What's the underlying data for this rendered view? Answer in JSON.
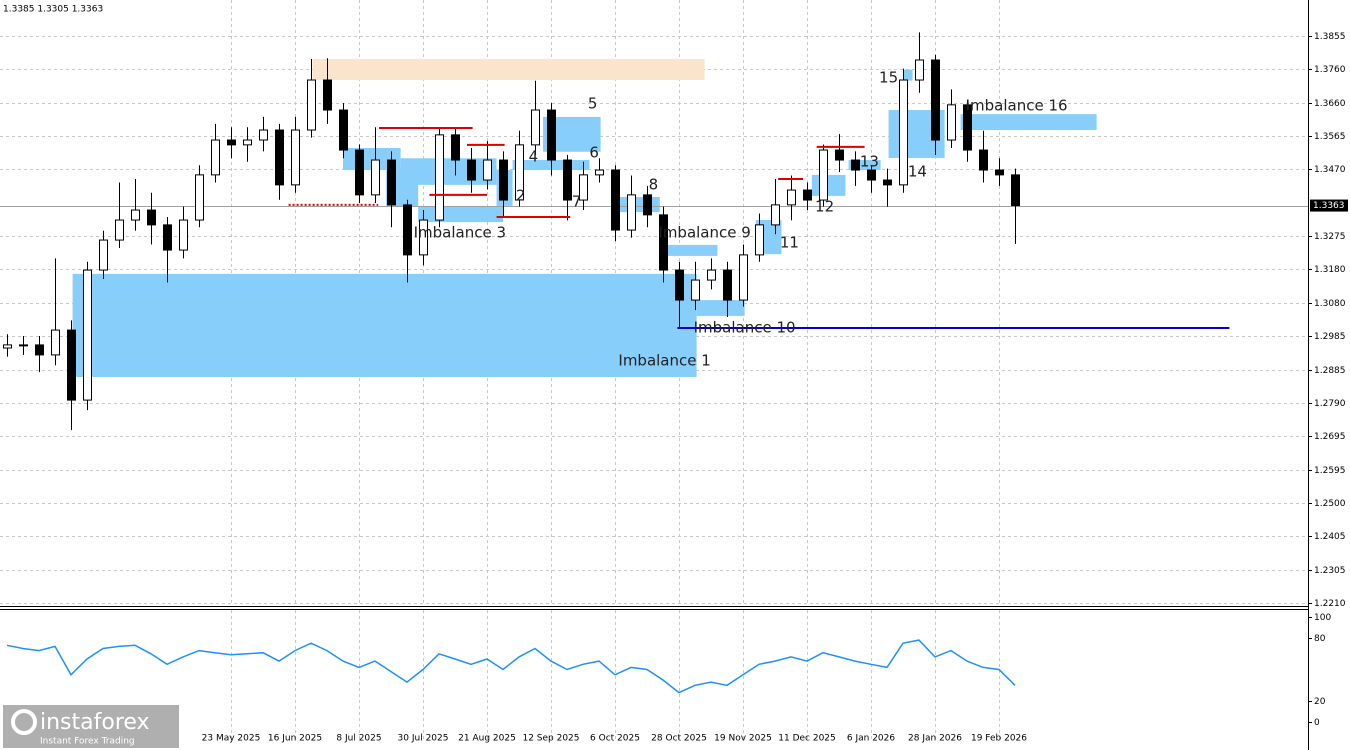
{
  "header": "1.3385 1.3305 1.3363",
  "watermark": {
    "brand": "instaforex",
    "tagline": "Instant Forex Trading"
  },
  "chart_data": [
    {
      "type": "candlestick",
      "categories": [
        null,
        null,
        null,
        null,
        null,
        null,
        null,
        null,
        null,
        null,
        null,
        null,
        null,
        null,
        "23 May 2025",
        null,
        null,
        null,
        "16 Jun 2025",
        null,
        null,
        null,
        "8 Jul 2025",
        null,
        null,
        null,
        "30 Jul 2025",
        null,
        null,
        null,
        "21 Aug 2025",
        null,
        null,
        null,
        "12 Sep 2025",
        null,
        null,
        null,
        "6 Oct 2025",
        null,
        null,
        null,
        "28 Oct 2025",
        null,
        null,
        null,
        "19 Nov 2025",
        null,
        null,
        null,
        "11 Dec 2025",
        null,
        null,
        null,
        "6 Jan 2026",
        null,
        null,
        null,
        "28 Jan 2026",
        null,
        null,
        null,
        "19 Feb 2026",
        null
      ],
      "open": [
        1.295,
        1.2959,
        1.2959,
        1.293,
        1.3002,
        1.2799,
        1.3176,
        1.3263,
        1.3321,
        1.335,
        1.3307,
        1.3234,
        1.3321,
        1.3452,
        1.3553,
        1.3539,
        1.3553,
        1.3582,
        1.3423,
        1.3582,
        1.3727,
        1.364,
        1.3524,
        1.3394,
        1.3495,
        1.3365,
        1.322,
        1.3321,
        1.3568,
        1.3495,
        1.3437,
        1.3495,
        1.3379,
        1.3539,
        1.364,
        1.3495,
        1.3379,
        1.3452,
        1.3466,
        1.3292,
        1.3394,
        1.3336,
        1.3176,
        1.3089,
        1.3147,
        1.3176,
        1.3089,
        1.322,
        1.3307,
        1.3365,
        1.3408,
        1.3379,
        1.3524,
        1.3495,
        1.3466,
        1.3437,
        1.3423,
        1.3727,
        1.3785,
        1.3553,
        1.3655,
        1.3524,
        1.3466,
        1.3452
      ],
      "high": [
        1.299,
        1.2985,
        1.2985,
        1.321,
        1.303,
        1.32,
        1.329,
        1.343,
        1.344,
        1.34,
        1.333,
        1.336,
        1.348,
        1.36,
        1.359,
        1.359,
        1.362,
        1.36,
        1.362,
        1.3788,
        1.379,
        1.366,
        1.354,
        1.359,
        1.352,
        1.338,
        1.335,
        1.359,
        1.359,
        1.353,
        1.355,
        1.352,
        1.358,
        1.3725,
        1.366,
        1.351,
        1.349,
        1.35,
        1.348,
        1.345,
        1.342,
        1.336,
        1.32,
        1.32,
        1.321,
        1.32,
        1.325,
        1.334,
        1.344,
        1.345,
        1.343,
        1.354,
        1.357,
        1.352,
        1.348,
        1.347,
        1.376,
        1.3865,
        1.38,
        1.37,
        1.367,
        1.358,
        1.35,
        1.347
      ],
      "low": [
        1.2925,
        1.293,
        1.288,
        1.29,
        1.2712,
        1.277,
        1.315,
        1.324,
        1.329,
        1.325,
        1.314,
        1.321,
        1.33,
        1.343,
        1.35,
        1.349,
        1.352,
        1.338,
        1.34,
        1.356,
        1.36,
        1.35,
        1.337,
        1.337,
        1.33,
        1.314,
        1.319,
        1.33,
        1.345,
        1.34,
        1.341,
        1.333,
        1.336,
        1.351,
        1.345,
        1.332,
        1.335,
        1.343,
        1.326,
        1.327,
        1.33,
        1.314,
        1.3008,
        1.306,
        1.312,
        1.304,
        1.307,
        1.32,
        1.328,
        1.332,
        1.335,
        1.336,
        1.346,
        1.342,
        1.34,
        1.336,
        1.34,
        1.369,
        1.351,
        1.353,
        1.349,
        1.343,
        1.342,
        1.3252
      ],
      "close": [
        1.2959,
        1.2959,
        1.293,
        1.3002,
        1.2799,
        1.3176,
        1.3263,
        1.3321,
        1.335,
        1.3307,
        1.3234,
        1.3321,
        1.3452,
        1.3553,
        1.3539,
        1.3553,
        1.3582,
        1.3423,
        1.3582,
        1.3727,
        1.364,
        1.3524,
        1.3394,
        1.3495,
        1.3365,
        1.322,
        1.3321,
        1.3568,
        1.3495,
        1.3437,
        1.3495,
        1.3379,
        1.3539,
        1.364,
        1.3495,
        1.3379,
        1.3452,
        1.3466,
        1.3292,
        1.3394,
        1.3336,
        1.3176,
        1.3089,
        1.3147,
        1.3176,
        1.3089,
        1.322,
        1.3307,
        1.3365,
        1.3408,
        1.3379,
        1.3524,
        1.3495,
        1.3466,
        1.3437,
        1.3423,
        1.3727,
        1.3785,
        1.3553,
        1.3655,
        1.3524,
        1.3466,
        1.3452,
        1.3363
      ],
      "ylim": [
        1.2202,
        1.3959
      ],
      "yticks": [
        1.3855,
        {
          "value": 1.376,
          "label": "1.3760"
        },
        {
          "value": 1.366,
          "label": "1.3660"
        },
        1.3565,
        {
          "value": 1.347,
          "label": "1.3470"
        },
        1.3275,
        {
          "value": 1.318,
          "label": "1.3180"
        },
        {
          "value": 1.308,
          "label": "1.3080"
        },
        1.2985,
        1.2885,
        {
          "value": 1.279,
          "label": "1.2790"
        },
        1.2695,
        1.2595,
        {
          "value": 1.25,
          "label": "1.2500"
        },
        1.2405,
        1.2305,
        {
          "value": 1.221,
          "label": "1.2210"
        }
      ],
      "grid": true,
      "current_price": {
        "value": 1.3363,
        "label": "1.3363"
      },
      "zones": [
        {
          "from": 4.1,
          "to": 43.1,
          "low": 1.2866,
          "high": 1.3165,
          "color": "#87cefa"
        },
        {
          "from": 19.1,
          "to": 43.6,
          "low": 1.3727,
          "high": 1.3788,
          "color": "#fae5cc"
        },
        {
          "from": 33.5,
          "to": 37.1,
          "low": 1.3519,
          "high": 1.362,
          "color": "#87cefa"
        },
        {
          "from": 21,
          "to": 24.6,
          "low": 1.3466,
          "high": 1.353,
          "color": "#87cefa"
        },
        {
          "from": 23.7,
          "to": 25.7,
          "low": 1.336,
          "high": 1.347,
          "color": "#87cefa"
        },
        {
          "from": 24.6,
          "to": 30.6,
          "low": 1.3423,
          "high": 1.35,
          "color": "#87cefa"
        },
        {
          "from": 25.7,
          "to": 31,
          "low": 1.3315,
          "high": 1.3362,
          "color": "#87cefa"
        },
        {
          "from": 30.6,
          "to": 31.6,
          "low": 1.3362,
          "high": 1.3466,
          "color": "#87cefa"
        },
        {
          "from": 31.6,
          "to": 36.4,
          "low": 1.3466,
          "high": 1.3495,
          "color": "#87cefa"
        },
        {
          "from": 38.2,
          "to": 40.8,
          "low": 1.3344,
          "high": 1.3388,
          "color": "#87cefa"
        },
        {
          "from": 40.9,
          "to": 44.4,
          "low": 1.3217,
          "high": 1.3249,
          "color": "#87cefa"
        },
        {
          "from": 43.1,
          "to": 46.1,
          "low": 1.3043,
          "high": 1.3089,
          "color": "#87cefa"
        },
        {
          "from": 46.8,
          "to": 48.4,
          "low": 1.3222,
          "high": 1.3321,
          "color": "#87cefa"
        },
        {
          "from": 50.3,
          "to": 52.4,
          "low": 1.3391,
          "high": 1.3452,
          "color": "#87cefa"
        },
        {
          "from": 52.6,
          "to": 54.6,
          "low": 1.3466,
          "high": 1.3495,
          "color": "#87cefa"
        },
        {
          "from": 55.1,
          "to": 58.6,
          "low": 1.3501,
          "high": 1.364,
          "color": "#87cefa"
        },
        {
          "from": 56,
          "to": 56.6,
          "low": 1.3725,
          "high": 1.3757,
          "color": "#87cefa"
        },
        {
          "from": 59.6,
          "to": 68.1,
          "low": 1.3582,
          "high": 1.3628,
          "color": "#87cefa"
        }
      ],
      "levels": [
        {
          "from": 23.25,
          "to": 29.1,
          "price": 1.3588,
          "color": "#dd0000",
          "dashed": false
        },
        {
          "from": 17.6,
          "to": 23.2,
          "price": 1.3365,
          "color": "#dd0000",
          "dashed": true
        },
        {
          "from": 30.6,
          "to": 35.2,
          "price": 1.333,
          "color": "#dd0000",
          "dashed": false
        },
        {
          "from": 26.4,
          "to": 30,
          "price": 1.3394,
          "color": "#dd0000",
          "dashed": false
        },
        {
          "from": 28.75,
          "to": 31.1,
          "price": 1.3539,
          "color": "#dd0000",
          "dashed": false
        },
        {
          "from": 48.2,
          "to": 49.75,
          "price": 1.344,
          "color": "#dd0000",
          "dashed": false
        },
        {
          "from": 50.6,
          "to": 53.6,
          "price": 1.3533,
          "color": "#dd0000",
          "dashed": false
        },
        {
          "from": 41.9,
          "to": 76.4,
          "price": 1.3008,
          "color": "#0000cd",
          "dashed": false
        }
      ],
      "annotations": [
        {
          "text": "Imbalance 1",
          "index": 41.1,
          "price": 1.2912
        },
        {
          "text": "2",
          "index": 32.1,
          "price": 1.3391
        },
        {
          "text": "Imbalance 3",
          "index": 28.3,
          "price": 1.3283
        },
        {
          "text": "4",
          "index": 32.9,
          "price": 1.3504
        },
        {
          "text": "5",
          "index": 36.6,
          "price": 1.3658
        },
        {
          "text": "6",
          "index": 36.7,
          "price": 1.3516
        },
        {
          "text": "7",
          "index": 35.6,
          "price": 1.3373
        },
        {
          "text": "8",
          "index": 40.4,
          "price": 1.3423
        },
        {
          "text": "Imbalance 9",
          "index": 43.6,
          "price": 1.3283
        },
        {
          "text": "Imbalance 10",
          "index": 46.1,
          "price": 1.3008
        },
        {
          "text": "11",
          "index": 48.9,
          "price": 1.3255
        },
        {
          "text": "12",
          "index": 51.1,
          "price": 1.3359
        },
        {
          "text": "13",
          "index": 53.9,
          "price": 1.349
        },
        {
          "text": "14",
          "index": 56.9,
          "price": 1.346
        },
        {
          "text": "15",
          "index": 55.1,
          "price": 1.3733
        },
        {
          "text": "Imbalance 16",
          "index": 63.1,
          "price": 1.3652
        }
      ]
    },
    {
      "type": "line",
      "values": [
        73,
        70,
        68,
        72,
        45,
        60,
        70,
        72,
        73,
        65,
        55,
        62,
        68,
        66,
        64,
        65,
        66,
        58,
        68,
        75,
        68,
        58,
        52,
        58,
        48,
        38,
        50,
        65,
        60,
        55,
        60,
        50,
        62,
        70,
        58,
        50,
        55,
        58,
        45,
        52,
        50,
        40,
        28,
        35,
        38,
        35,
        45,
        55,
        58,
        62,
        58,
        66,
        62,
        58,
        55,
        52,
        75,
        78,
        62,
        68,
        58,
        52,
        50,
        35
      ],
      "color": "#1e90ff",
      "ylim": [
        -19,
        107.6
      ],
      "yticks": [
        100,
        80,
        20,
        0
      ]
    }
  ]
}
